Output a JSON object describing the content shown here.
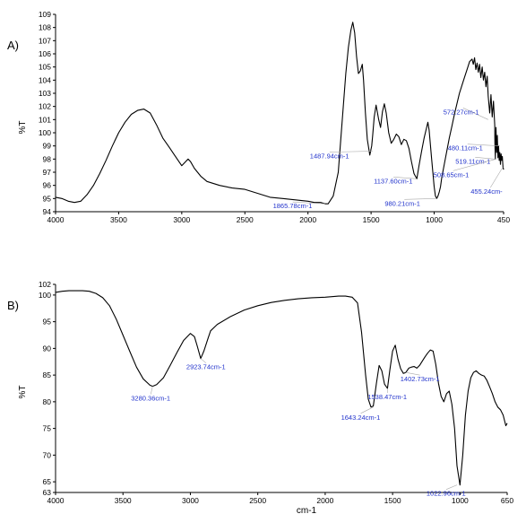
{
  "chart_data": [
    {
      "type": "line",
      "panel_label": "A)",
      "ylabel": "%T",
      "xlabel": "",
      "xlim": [
        4000,
        450
      ],
      "ylim": [
        94,
        109
      ],
      "x_ticks": [
        4000,
        3500,
        3000,
        2500,
        2000,
        1500,
        1000,
        450
      ],
      "y_ticks": [
        94,
        95,
        96,
        97,
        98,
        99,
        100,
        101,
        102,
        103,
        104,
        105,
        106,
        107,
        108,
        109
      ],
      "line_color": "#000000",
      "annotation_color": "#2233cc",
      "series": [
        {
          "x": [
            4000,
            3950,
            3900,
            3850,
            3800,
            3750,
            3700,
            3650,
            3600,
            3550,
            3500,
            3450,
            3400,
            3350,
            3300,
            3250,
            3200,
            3150,
            3100,
            3050,
            3000,
            2970,
            2950,
            2930,
            2900,
            2850,
            2800,
            2700,
            2600,
            2500,
            2400,
            2300,
            2200,
            2100,
            2000,
            1950,
            1900,
            1865,
            1840,
            1800,
            1760,
            1740,
            1720,
            1700,
            1680,
            1660,
            1645,
            1630,
            1615,
            1600,
            1585,
            1570,
            1560,
            1545,
            1530,
            1510,
            1495,
            1487,
            1475,
            1460,
            1440,
            1425,
            1410,
            1395,
            1380,
            1360,
            1340,
            1320,
            1300,
            1280,
            1260,
            1240,
            1220,
            1200,
            1180,
            1160,
            1137,
            1120,
            1100,
            1080,
            1060,
            1050,
            1040,
            1020,
            1000,
            990,
            980,
            970,
            960,
            950,
            940,
            920,
            900,
            880,
            860,
            840,
            820,
            800,
            780,
            760,
            740,
            720,
            700,
            690,
            680,
            670,
            660,
            650,
            640,
            630,
            620,
            610,
            600,
            590,
            580,
            572,
            560,
            550,
            540,
            530,
            520,
            519,
            515,
            510,
            505,
            500,
            495,
            490,
            485,
            480,
            475,
            470,
            465,
            460,
            455,
            450
          ],
          "y": [
            95.1,
            95.0,
            94.8,
            94.7,
            94.8,
            95.3,
            96.0,
            96.9,
            97.9,
            99.0,
            100.0,
            100.8,
            101.4,
            101.7,
            101.8,
            101.5,
            100.6,
            99.6,
            98.9,
            98.2,
            97.5,
            97.8,
            98.0,
            97.8,
            97.3,
            96.7,
            96.3,
            96.0,
            95.8,
            95.7,
            95.4,
            95.1,
            95.0,
            94.9,
            94.8,
            94.7,
            94.7,
            94.6,
            94.6,
            95.2,
            97.0,
            99.5,
            102.0,
            104.5,
            106.5,
            107.8,
            108.4,
            107.6,
            105.8,
            104.5,
            104.7,
            105.2,
            104.0,
            101.5,
            99.5,
            98.3,
            99.0,
            99.8,
            101.2,
            102.1,
            101.0,
            100.4,
            101.6,
            102.2,
            101.5,
            100.0,
            99.2,
            99.5,
            99.9,
            99.7,
            99.1,
            99.5,
            99.4,
            98.8,
            97.8,
            96.9,
            96.5,
            97.5,
            98.6,
            99.6,
            100.4,
            100.8,
            100.2,
            98.0,
            95.9,
            95.2,
            95.0,
            95.2,
            95.5,
            95.9,
            96.6,
            97.6,
            98.6,
            99.6,
            100.5,
            101.4,
            102.2,
            103.0,
            103.6,
            104.2,
            104.8,
            105.4,
            105.6,
            105.2,
            105.7,
            104.8,
            105.3,
            104.6,
            105.2,
            104.2,
            105.0,
            104.0,
            104.6,
            103.5,
            104.3,
            102.8,
            101.5,
            102.9,
            101.2,
            102.4,
            100.6,
            99.2,
            98.0,
            100.4,
            98.5,
            99.8,
            98.1,
            99.0,
            97.9,
            98.5,
            97.6,
            98.4,
            97.9,
            98.2,
            97.4,
            97.2
          ]
        }
      ],
      "annotations": [
        {
          "text": "1865.78cm-1",
          "x": 1865.78,
          "y": 94.6
        },
        {
          "text": "1487.94cm-1",
          "x": 1487.94,
          "y": 98.6
        },
        {
          "text": "1137.60cm-1",
          "x": 1137.6,
          "y": 96.5
        },
        {
          "text": "980.21cm-1",
          "x": 980.21,
          "y": 95.0
        },
        {
          "text": "519.11cm-1",
          "x": 519.11,
          "y": 98.0
        },
        {
          "text": "508.65cm-1",
          "x": 508.65,
          "y": 98.0
        },
        {
          "text": "455.24cm-",
          "x": 455.24,
          "y": 97.4
        },
        {
          "text": "480.11cm-1",
          "x": 480.11,
          "y": 99.0
        },
        {
          "text": "572.27cm-1",
          "x": 572.27,
          "y": 101.0
        }
      ]
    },
    {
      "type": "line",
      "panel_label": "B)",
      "ylabel": "%T",
      "xlabel": "cm-1",
      "xlim": [
        4000,
        650
      ],
      "ylim": [
        63,
        102
      ],
      "x_ticks": [
        4000,
        3500,
        3000,
        2500,
        2000,
        1500,
        1000,
        650
      ],
      "y_ticks": [
        63,
        65,
        70,
        75,
        80,
        85,
        90,
        95,
        100,
        102
      ],
      "line_color": "#000000",
      "annotation_color": "#2233cc",
      "series": [
        {
          "x": [
            4000,
            3950,
            3900,
            3850,
            3800,
            3750,
            3700,
            3650,
            3600,
            3550,
            3500,
            3450,
            3400,
            3350,
            3300,
            3280,
            3250,
            3200,
            3150,
            3100,
            3050,
            3000,
            2970,
            2950,
            2923,
            2900,
            2870,
            2850,
            2800,
            2700,
            2600,
            2500,
            2400,
            2300,
            2200,
            2100,
            2000,
            1950,
            1900,
            1850,
            1800,
            1760,
            1730,
            1700,
            1680,
            1660,
            1643,
            1620,
            1600,
            1580,
            1560,
            1538,
            1520,
            1500,
            1480,
            1460,
            1440,
            1420,
            1402,
            1380,
            1360,
            1340,
            1320,
            1300,
            1280,
            1260,
            1240,
            1220,
            1200,
            1180,
            1160,
            1140,
            1120,
            1100,
            1080,
            1060,
            1040,
            1022,
            1000,
            980,
            960,
            940,
            920,
            900,
            880,
            860,
            840,
            820,
            800,
            780,
            760,
            740,
            720,
            700,
            680,
            660,
            650
          ],
          "y": [
            100.5,
            100.7,
            100.8,
            100.8,
            100.8,
            100.7,
            100.3,
            99.5,
            98.0,
            95.5,
            92.5,
            89.5,
            86.5,
            84.3,
            83.1,
            82.9,
            83.2,
            84.5,
            86.8,
            89.2,
            91.5,
            92.8,
            92.2,
            90.5,
            88.1,
            89.5,
            91.8,
            93.3,
            94.5,
            96.0,
            97.2,
            98.0,
            98.6,
            99.0,
            99.3,
            99.5,
            99.6,
            99.7,
            99.8,
            99.8,
            99.6,
            98.5,
            93.0,
            85.0,
            80.5,
            79.0,
            79.2,
            83.5,
            86.8,
            85.8,
            83.3,
            82.5,
            86.0,
            89.5,
            90.6,
            88.0,
            86.2,
            85.3,
            85.5,
            86.3,
            86.5,
            86.6,
            86.3,
            86.8,
            87.6,
            88.4,
            89.1,
            89.7,
            89.5,
            87.0,
            83.5,
            81.0,
            80.0,
            81.5,
            82.0,
            79.5,
            75.0,
            68.0,
            64.4,
            70.0,
            77.5,
            82.0,
            84.5,
            85.5,
            85.8,
            85.3,
            85.0,
            84.8,
            84.0,
            82.8,
            81.5,
            80.0,
            79.0,
            78.5,
            77.5,
            75.5,
            76.0
          ]
        }
      ],
      "annotations": [
        {
          "text": "3280.36cm-1",
          "x": 3280.36,
          "y": 82.9
        },
        {
          "text": "2923.74cm-1",
          "x": 2923.74,
          "y": 88.1
        },
        {
          "text": "1643.24cm-1",
          "x": 1643.24,
          "y": 79.0
        },
        {
          "text": "1538.47cm-1",
          "x": 1538.47,
          "y": 82.5
        },
        {
          "text": "1402.73cm-1",
          "x": 1402.73,
          "y": 85.5
        },
        {
          "text": "1022.96cm-1",
          "x": 1022.96,
          "y": 64.4
        }
      ]
    }
  ]
}
